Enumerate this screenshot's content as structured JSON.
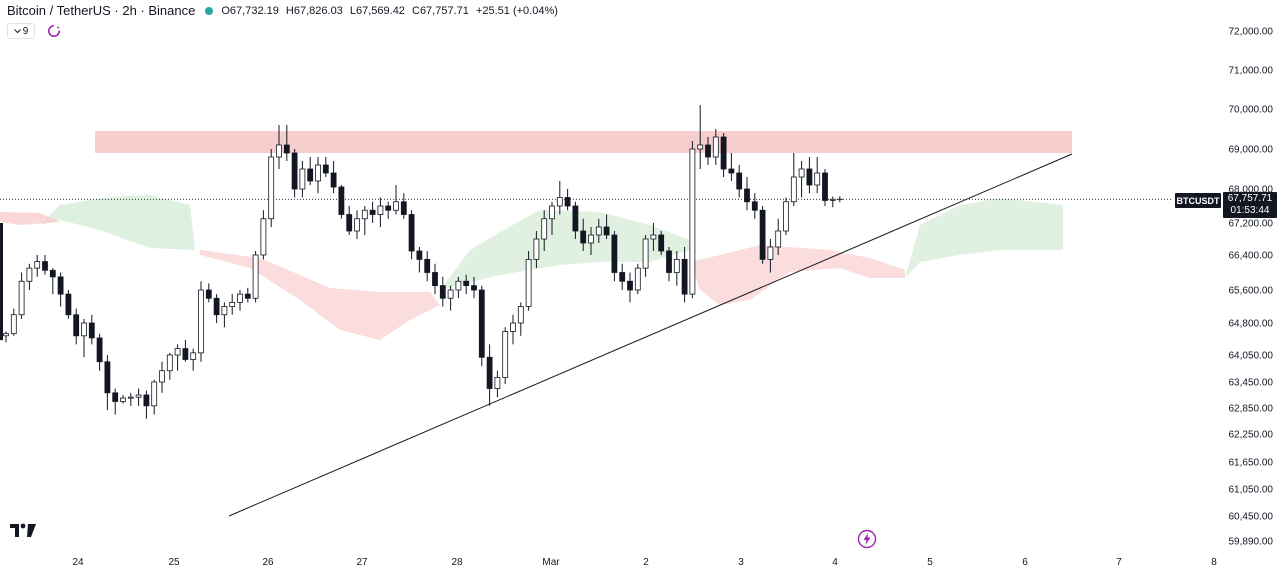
{
  "header": {
    "symbol": "Bitcoin / TetherUS · 2h · Binance",
    "open": "O67,732.19",
    "high": "H67,826.03",
    "low": "L67,569.42",
    "close": "C67,757.71",
    "change": "+25.51 (+0.04%)"
  },
  "indicator_button": {
    "label": "9"
  },
  "ticker_badge": "BTCUSDT",
  "price_tag": {
    "price": "67,757.71",
    "countdown": "01:53:44"
  },
  "colors": {
    "up": "#ffffff",
    "down": "#131722",
    "cloud_bull": "#c8e6c9",
    "cloud_bear": "#f8c7c7",
    "resistance_zone": "#f3b3b3",
    "accent": "#9c27b0"
  },
  "chart_data": {
    "type": "candlestick",
    "symbol": "BTCUSDT",
    "interval": "2h",
    "y_ticks": [
      "72,000.00",
      "71,000.00",
      "70,000.00",
      "69,000.00",
      "68,000.00",
      "67,200.00",
      "66,400.00",
      "65,600.00",
      "64,800.00",
      "64,050.00",
      "63,450.00",
      "62,850.00",
      "62,250.00",
      "61,650.00",
      "61,050.00",
      "60,450.00",
      "59,890.00"
    ],
    "x_ticks": [
      "24",
      "25",
      "26",
      "27",
      "28",
      "Mar",
      "2",
      "3",
      "4",
      "5",
      "6",
      "7",
      "8"
    ],
    "last_price": 67757.71,
    "candles": [
      [
        64500,
        64600,
        64350,
        64550
      ],
      [
        64550,
        65150,
        64500,
        65000
      ],
      [
        65000,
        66000,
        64900,
        65800
      ],
      [
        65800,
        66200,
        65600,
        66100
      ],
      [
        66100,
        66400,
        65900,
        66250
      ],
      [
        66250,
        66400,
        65950,
        66050
      ],
      [
        66050,
        66100,
        65500,
        65900
      ],
      [
        65900,
        66000,
        65200,
        65500
      ],
      [
        65500,
        65600,
        64900,
        65000
      ],
      [
        65000,
        65150,
        64300,
        64500
      ],
      [
        64500,
        64900,
        64000,
        64800
      ],
      [
        64800,
        65000,
        64300,
        64450
      ],
      [
        64450,
        64550,
        63700,
        63900
      ],
      [
        63900,
        64050,
        62800,
        63200
      ],
      [
        63200,
        63300,
        62700,
        63000
      ],
      [
        63000,
        63150,
        62950,
        63080
      ],
      [
        63080,
        63200,
        62900,
        63100
      ],
      [
        63100,
        63300,
        62900,
        63150
      ],
      [
        63150,
        63250,
        62600,
        62900
      ],
      [
        62900,
        63500,
        62700,
        63450
      ],
      [
        63450,
        63900,
        63200,
        63700
      ],
      [
        63700,
        64100,
        63500,
        64050
      ],
      [
        64050,
        64300,
        63700,
        64200
      ],
      [
        64200,
        64400,
        63900,
        63950
      ],
      [
        63950,
        64200,
        63700,
        64100
      ],
      [
        64100,
        65800,
        63900,
        65600
      ],
      [
        65600,
        65750,
        65300,
        65400
      ],
      [
        65400,
        65500,
        64800,
        65000
      ],
      [
        65000,
        65300,
        64700,
        65200
      ],
      [
        65200,
        65500,
        65000,
        65300
      ],
      [
        65300,
        65600,
        65100,
        65500
      ],
      [
        65500,
        65650,
        65300,
        65400
      ],
      [
        65400,
        66500,
        65300,
        66400
      ],
      [
        66400,
        67500,
        66300,
        67300
      ],
      [
        67300,
        69000,
        67100,
        68800
      ],
      [
        68800,
        69600,
        68500,
        69100
      ],
      [
        69100,
        69600,
        68700,
        68900
      ],
      [
        68900,
        69000,
        67800,
        68000
      ],
      [
        68000,
        68700,
        67800,
        68500
      ],
      [
        68500,
        68800,
        68100,
        68200
      ],
      [
        68200,
        68800,
        67900,
        68600
      ],
      [
        68600,
        68800,
        68300,
        68400
      ],
      [
        68400,
        68700,
        67900,
        68050
      ],
      [
        68050,
        68100,
        67300,
        67400
      ],
      [
        67400,
        67600,
        66900,
        67000
      ],
      [
        67000,
        67500,
        66800,
        67300
      ],
      [
        67300,
        67600,
        66900,
        67500
      ],
      [
        67500,
        67700,
        67200,
        67400
      ],
      [
        67400,
        67800,
        67100,
        67600
      ],
      [
        67600,
        67700,
        67300,
        67500
      ],
      [
        67500,
        68100,
        67400,
        67700
      ],
      [
        67700,
        67900,
        67300,
        67400
      ],
      [
        67400,
        67500,
        66300,
        66500
      ],
      [
        66500,
        66600,
        66000,
        66300
      ],
      [
        66300,
        66500,
        65800,
        66000
      ],
      [
        66000,
        66200,
        65500,
        65700
      ],
      [
        65700,
        65900,
        65200,
        65400
      ],
      [
        65400,
        65700,
        65100,
        65600
      ],
      [
        65600,
        65900,
        65400,
        65800
      ],
      [
        65800,
        65950,
        65500,
        65700
      ],
      [
        65700,
        65900,
        65400,
        65600
      ],
      [
        65600,
        65700,
        63800,
        64000
      ],
      [
        64000,
        64300,
        62900,
        63300
      ],
      [
        63300,
        63700,
        63100,
        63550
      ],
      [
        63550,
        64700,
        63400,
        64600
      ],
      [
        64600,
        65000,
        64300,
        64800
      ],
      [
        64800,
        65300,
        64500,
        65200
      ],
      [
        65200,
        66500,
        65100,
        66300
      ],
      [
        66300,
        67000,
        66100,
        66800
      ],
      [
        66800,
        67500,
        66500,
        67300
      ],
      [
        67300,
        67700,
        66900,
        67600
      ],
      [
        67600,
        68200,
        67400,
        67800
      ],
      [
        67800,
        68000,
        67500,
        67600
      ],
      [
        67600,
        67700,
        66800,
        67000
      ],
      [
        67000,
        67300,
        66500,
        66700
      ],
      [
        66700,
        67100,
        66400,
        66900
      ],
      [
        66900,
        67300,
        66700,
        67100
      ],
      [
        67100,
        67400,
        66800,
        66900
      ],
      [
        66900,
        67000,
        65800,
        66000
      ],
      [
        66000,
        66200,
        65600,
        65800
      ],
      [
        65800,
        66000,
        65300,
        65600
      ],
      [
        65600,
        66200,
        65500,
        66100
      ],
      [
        66100,
        66900,
        65900,
        66800
      ],
      [
        66800,
        67200,
        66500,
        66900
      ],
      [
        66900,
        67000,
        66400,
        66500
      ],
      [
        66500,
        66600,
        65800,
        66000
      ],
      [
        66000,
        66500,
        65700,
        66300
      ],
      [
        66300,
        66600,
        65300,
        65500
      ],
      [
        65500,
        69200,
        65400,
        69000
      ],
      [
        69000,
        70100,
        68500,
        69100
      ],
      [
        69100,
        69300,
        68600,
        68800
      ],
      [
        68800,
        69500,
        68600,
        69300
      ],
      [
        69300,
        69400,
        68300,
        68500
      ],
      [
        68500,
        68900,
        68200,
        68400
      ],
      [
        68400,
        68600,
        67800,
        68000
      ],
      [
        68000,
        68300,
        67500,
        67700
      ],
      [
        67700,
        67900,
        67300,
        67500
      ],
      [
        67500,
        67600,
        66200,
        66300
      ],
      [
        66300,
        66800,
        66000,
        66600
      ],
      [
        66600,
        67300,
        66400,
        67000
      ],
      [
        67000,
        67800,
        66900,
        67700
      ],
      [
        67700,
        68900,
        67600,
        68300
      ],
      [
        68300,
        68700,
        67800,
        68500
      ],
      [
        68500,
        68800,
        67900,
        68100
      ],
      [
        68100,
        68800,
        67900,
        68400
      ],
      [
        68400,
        68500,
        67600,
        67730
      ],
      [
        67732.19,
        67826.03,
        67569.42,
        67757.71
      ]
    ],
    "resistance_zone": {
      "from": 68900,
      "to": 69450
    },
    "trendline": [
      [
        60450,
        0
      ],
      [
        68900,
        1
      ]
    ],
    "ichimoku_cloud": "bullish (green) and bearish (red) regions"
  }
}
